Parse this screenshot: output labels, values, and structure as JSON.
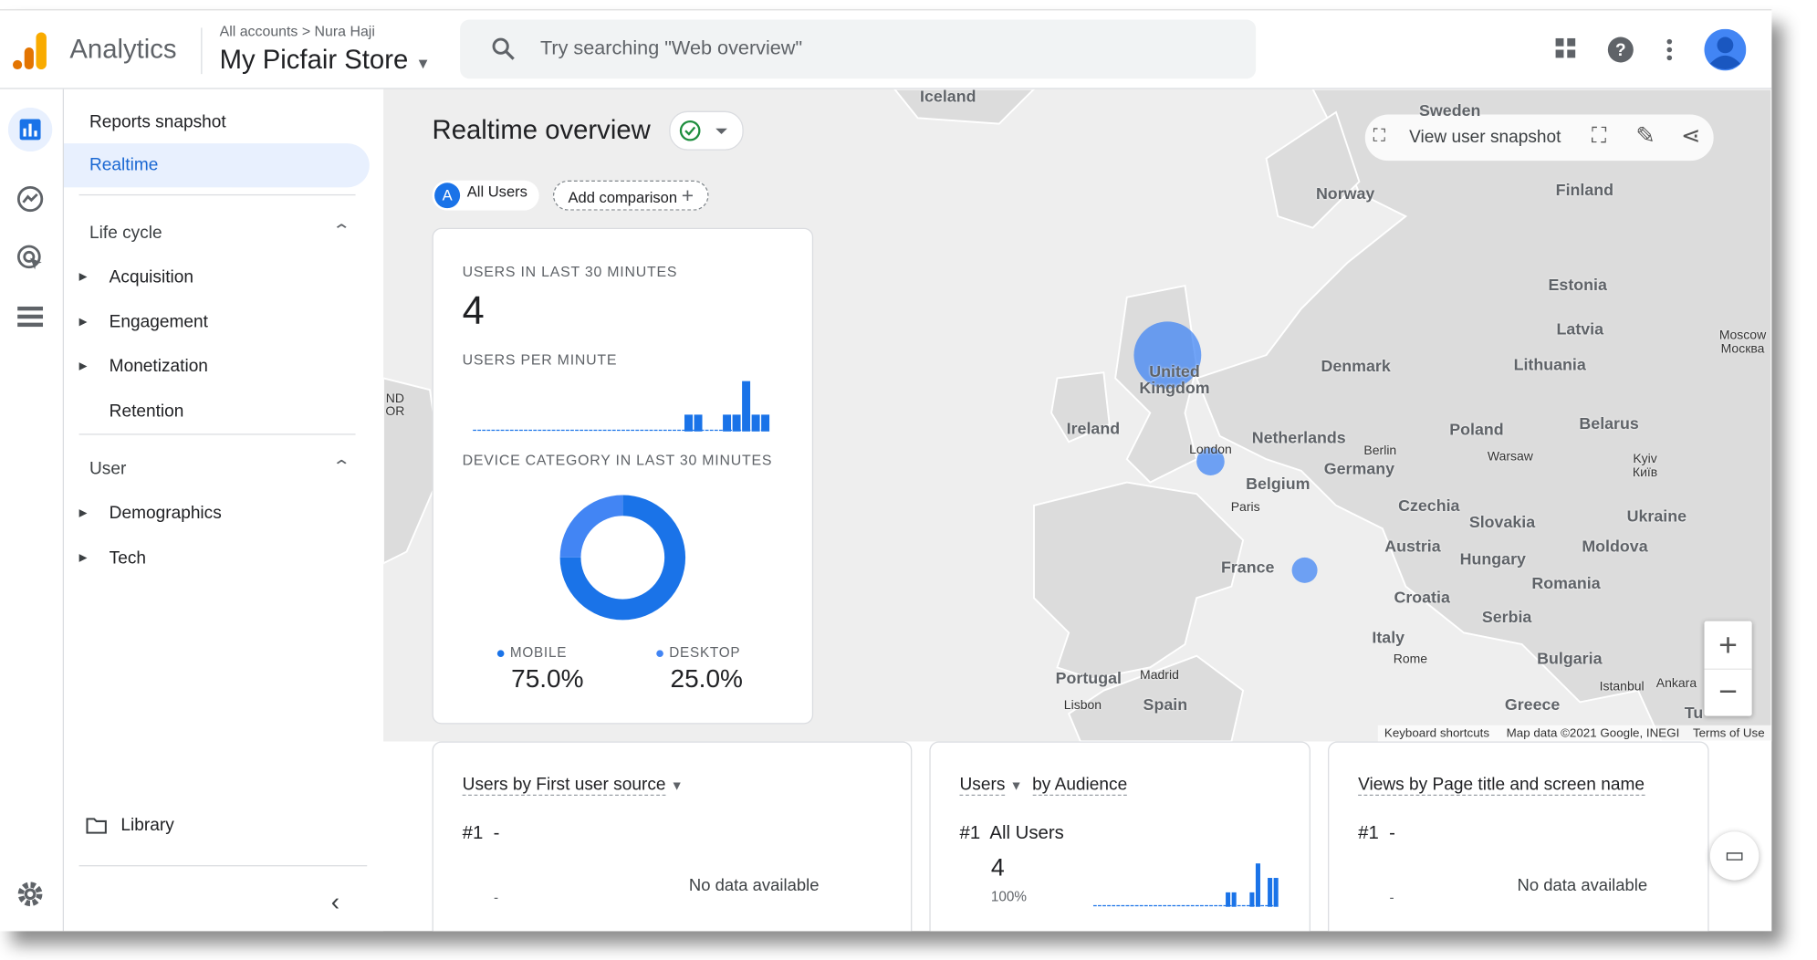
{
  "header": {
    "app": "Analytics",
    "breadcrumb": [
      "All accounts",
      "Nura Haji"
    ],
    "property": "My Picfair Store",
    "search_placeholder": "Try searching \"Web overview\""
  },
  "sidebar": {
    "top_items": [
      "Reports snapshot",
      "Realtime"
    ],
    "sections": [
      {
        "title": "Life cycle",
        "items": [
          "Acquisition",
          "Engagement",
          "Monetization",
          "Retention"
        ]
      },
      {
        "title": "User",
        "items": [
          "Demographics",
          "Tech"
        ]
      }
    ],
    "library": "Library"
  },
  "page": {
    "title": "Realtime overview",
    "audience_badge": "A",
    "audience": "All Users",
    "add_comparison": "Add comparison",
    "view_snapshot": "View user snapshot"
  },
  "summary_card": {
    "users_label": "USERS IN LAST 30 MINUTES",
    "users": 4,
    "per_minute_label": "USERS PER MINUTE",
    "per_minute": [
      0,
      0,
      0,
      0,
      0,
      0,
      0,
      0,
      0,
      0,
      0,
      0,
      0,
      0,
      0,
      0,
      0,
      0,
      0,
      0,
      0,
      0,
      1,
      1,
      0,
      0,
      1,
      1,
      3,
      1,
      1
    ],
    "device_label": "DEVICE CATEGORY IN LAST 30 MINUTES",
    "devices": [
      {
        "name": "MOBILE",
        "color": "#1a73e8",
        "value": 75,
        "value_label": "75.0%"
      },
      {
        "name": "DESKTOP",
        "color": "#4285f4",
        "value": 25,
        "value_label": "25.0%"
      }
    ]
  },
  "cards": [
    {
      "title": "Users by First user source",
      "rank": "#1",
      "rank_value": "-",
      "row": "-",
      "message": "No data available"
    },
    {
      "title_metric": "Users",
      "title_rest": "by Audience",
      "rank": "#1",
      "rank_value": "All Users",
      "users": 4,
      "share": "100%",
      "per_minute": [
        0,
        0,
        0,
        0,
        0,
        0,
        0,
        0,
        0,
        0,
        0,
        0,
        0,
        0,
        0,
        0,
        0,
        0,
        0,
        0,
        0,
        0,
        1,
        1,
        0,
        0,
        1,
        3,
        0,
        2,
        2
      ]
    },
    {
      "title": "Views by Page title and screen name",
      "rank": "#1",
      "rank_value": "-",
      "row": "-",
      "message": "No data available"
    }
  ],
  "map": {
    "labels": [
      "Iceland",
      "Sweden",
      "Norway",
      "Finland",
      "Estonia",
      "Latvia",
      "Lithuania",
      "Moscow",
      "Москва",
      "Denmark",
      "United Kingdom",
      "Ireland",
      "Netherlands",
      "Berlin",
      "Germany",
      "Poland",
      "Warsaw",
      "Belarus",
      "London",
      "Belgium",
      "Kyiv",
      "Київ",
      "Paris",
      "Czechia",
      "Slovakia",
      "Ukraine",
      "Austria",
      "Moldova",
      "Hungary",
      "France",
      "Romania",
      "Croatia",
      "Serbia",
      "Italy",
      "Bulgaria",
      "Rome",
      "Portugal",
      "Madrid",
      "Spain",
      "Lisbon",
      "Istanbul",
      "Ankara",
      "Greece",
      "Tu",
      "ND",
      "OR"
    ],
    "footer": [
      "Keyboard shortcuts",
      "Map data ©2021 Google, INEGI",
      "Terms of Use"
    ]
  }
}
